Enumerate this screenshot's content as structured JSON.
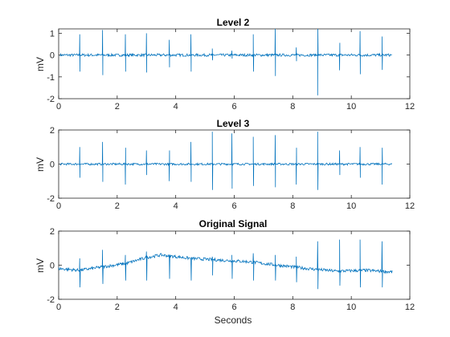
{
  "figure": {
    "xlabel": "Seconds",
    "line_color": "#0072bd"
  },
  "chart_data": [
    {
      "type": "line",
      "title": "Level 2",
      "ylabel": "mV",
      "xlim": [
        0,
        12
      ],
      "ylim": [
        -2,
        1.2
      ],
      "xticks": [
        "0",
        "2",
        "4",
        "6",
        "8",
        "10",
        "12"
      ],
      "yticks": [
        "-2",
        "-1",
        "0",
        "1"
      ],
      "grid": false,
      "series": [
        {
          "x": [
            0.05,
            0.72,
            1.5,
            2.28,
            3.0,
            3.78,
            4.52,
            5.25,
            5.92,
            6.65,
            7.4,
            8.12,
            8.85,
            9.6,
            10.3,
            11.05,
            11.4
          ],
          "values": [
            0.0,
            0.95,
            1.15,
            0.95,
            1.0,
            0.7,
            0.95,
            0.3,
            0.2,
            0.95,
            1.2,
            0.35,
            -1.85,
            -0.7,
            1.1,
            0.85,
            0.0
          ]
        }
      ]
    },
    {
      "type": "line",
      "title": "Level 3",
      "ylabel": "mV",
      "xlim": [
        0,
        12
      ],
      "ylim": [
        -2,
        2
      ],
      "xticks": [
        "0",
        "2",
        "4",
        "6",
        "8",
        "10",
        "12"
      ],
      "yticks": [
        "-2",
        "0",
        "2"
      ],
      "grid": false,
      "series": [
        {
          "x": [
            0.05,
            0.72,
            1.5,
            2.28,
            3.0,
            3.78,
            4.52,
            5.25,
            5.92,
            6.65,
            7.4,
            8.12,
            8.85,
            9.6,
            10.3,
            11.05,
            11.4
          ],
          "values": [
            0.0,
            1.0,
            1.3,
            -1.2,
            0.8,
            -1.0,
            1.3,
            1.9,
            1.8,
            1.6,
            1.7,
            -1.2,
            1.9,
            0.8,
            1.0,
            -1.2,
            0.0
          ]
        }
      ]
    },
    {
      "type": "line",
      "title": "Original Signal",
      "ylabel": "mV",
      "xlim": [
        0,
        12
      ],
      "ylim": [
        -2,
        2
      ],
      "xticks": [
        "0",
        "2",
        "4",
        "6",
        "8",
        "10",
        "12"
      ],
      "yticks": [
        "-2",
        "0",
        "2"
      ],
      "grid": false,
      "series": [
        {
          "baseline_x": [
            0.0,
            0.7,
            1.5,
            2.3,
            3.0,
            3.5,
            4.0,
            4.5,
            5.5,
            6.5,
            7.5,
            8.5,
            9.5,
            10.5,
            11.4
          ],
          "baseline_y": [
            -0.2,
            -0.3,
            -0.1,
            0.1,
            0.45,
            0.6,
            0.5,
            0.4,
            0.3,
            0.2,
            0.0,
            -0.2,
            -0.35,
            -0.3,
            -0.4
          ],
          "beat_x": [
            0.72,
            1.5,
            2.28,
            3.0,
            3.78,
            4.52,
            5.25,
            5.92,
            6.65,
            7.4,
            8.12,
            8.85,
            9.6,
            10.3,
            11.05
          ],
          "beat_peak": [
            0.4,
            0.9,
            0.6,
            0.8,
            0.4,
            0.1,
            0.5,
            0.6,
            0.7,
            0.6,
            0.5,
            1.4,
            1.5,
            1.5,
            1.4
          ],
          "beat_trough": [
            -1.3,
            -1.1,
            -0.9,
            -0.9,
            -0.8,
            -0.9,
            -0.6,
            -0.8,
            -0.9,
            -0.9,
            -1.0,
            -1.4,
            -1.2,
            -1.3,
            -1.3
          ]
        }
      ]
    }
  ]
}
